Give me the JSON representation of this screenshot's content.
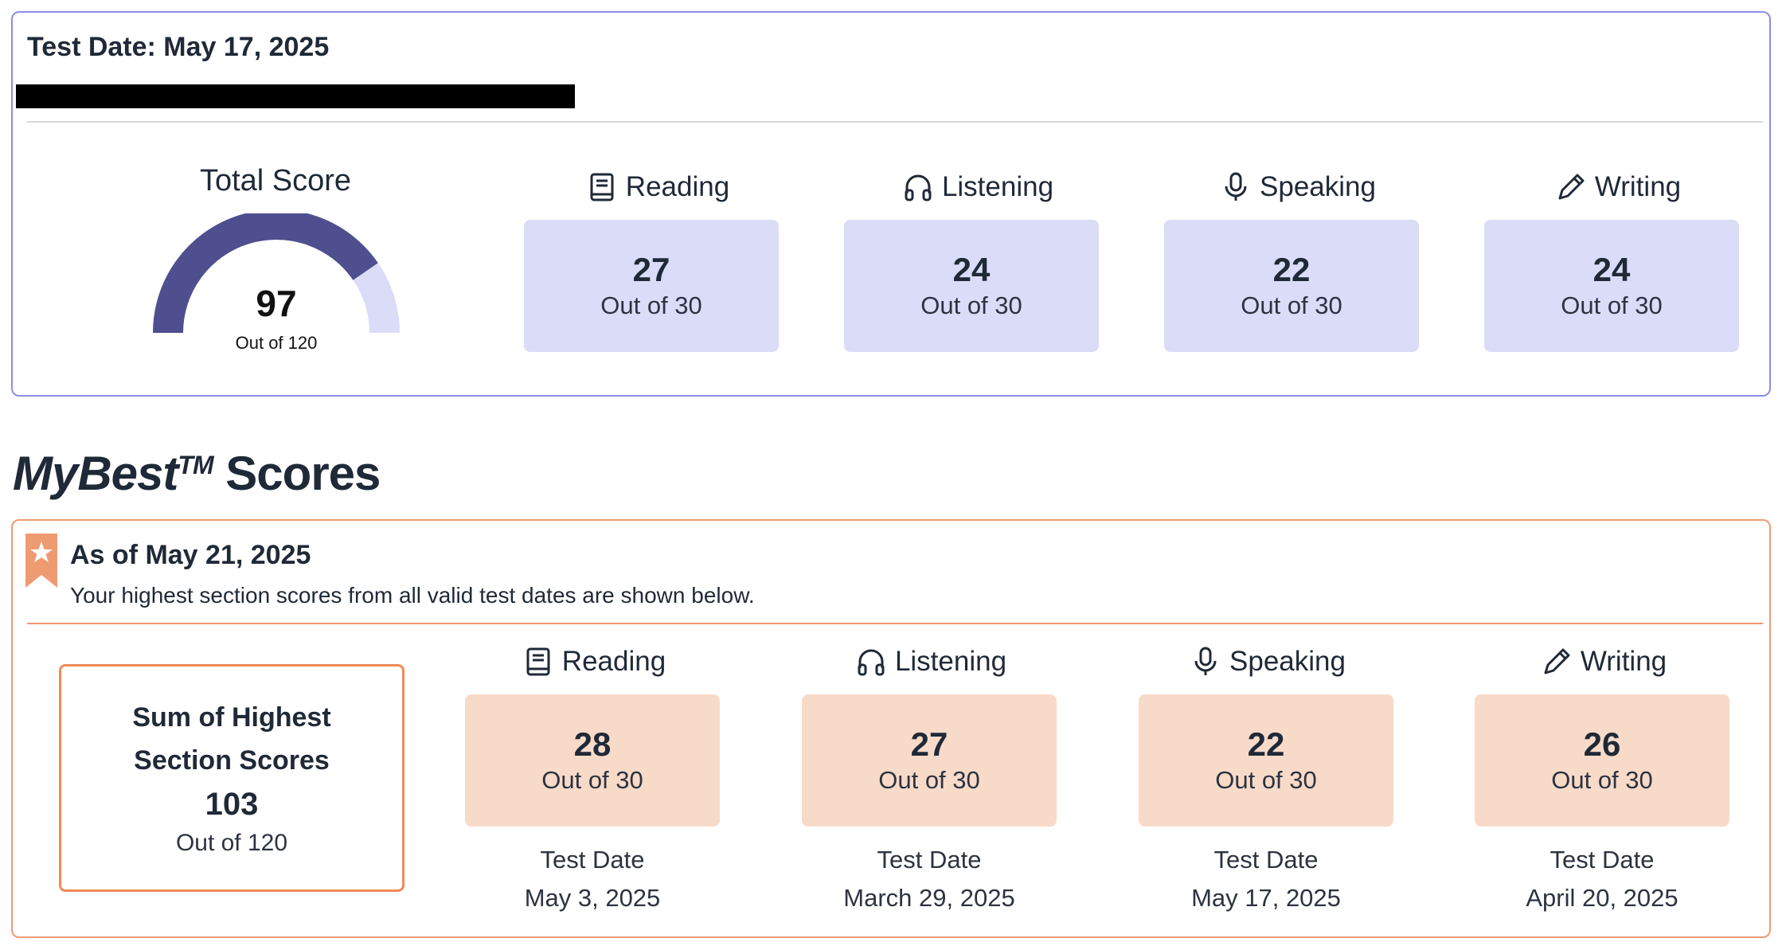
{
  "current_test": {
    "title": "Test Date: May 17, 2025",
    "total": {
      "label": "Total Score",
      "value": "97",
      "out_of": "Out of 120",
      "score": 97,
      "max": 120
    },
    "sections": [
      {
        "name": "Reading",
        "icon": "book-icon",
        "score": "27",
        "out_of": "Out of 30"
      },
      {
        "name": "Listening",
        "icon": "headphones-icon",
        "score": "24",
        "out_of": "Out of 30"
      },
      {
        "name": "Speaking",
        "icon": "microphone-icon",
        "score": "22",
        "out_of": "Out of 30"
      },
      {
        "name": "Writing",
        "icon": "pencil-icon",
        "score": "24",
        "out_of": "Out of 30"
      }
    ]
  },
  "mybest": {
    "brand": "MyBest",
    "tm": "TM",
    "word": "Scores",
    "as_of": "As of May 21, 2025",
    "description": "Your highest section scores from all valid test dates are shown below.",
    "sum": {
      "title": "Sum of Highest Section Scores",
      "value": "103",
      "out_of": "Out of 120"
    },
    "test_date_label": "Test Date",
    "sections": [
      {
        "name": "Reading",
        "icon": "book-icon",
        "score": "28",
        "out_of": "Out of 30",
        "date": "May 3, 2025"
      },
      {
        "name": "Listening",
        "icon": "headphones-icon",
        "score": "27",
        "out_of": "Out of 30",
        "date": "March 29, 2025"
      },
      {
        "name": "Speaking",
        "icon": "microphone-icon",
        "score": "22",
        "out_of": "Out of 30",
        "date": "May 17, 2025"
      },
      {
        "name": "Writing",
        "icon": "pencil-icon",
        "score": "26",
        "out_of": "Out of 30",
        "date": "April 20, 2025"
      }
    ]
  },
  "colors": {
    "current_border": "#8b8fe6",
    "current_box": "#dadcf8",
    "gauge_fill": "#4f4e8f",
    "gauge_track": "#dadcf8",
    "best_border": "#ef9b72",
    "best_box": "#f8dac9"
  }
}
